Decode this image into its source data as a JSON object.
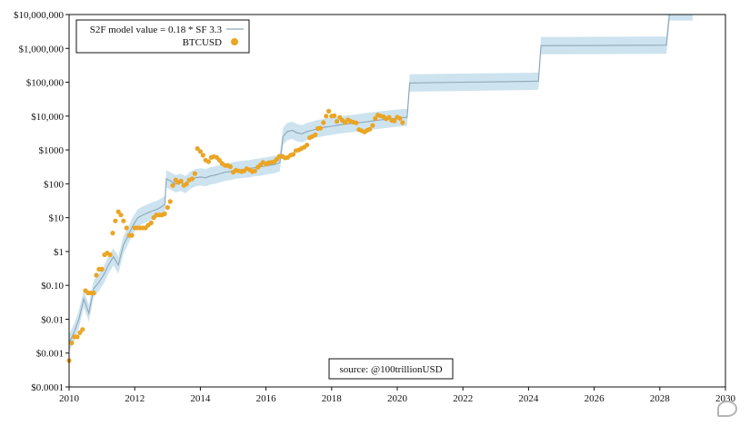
{
  "chart_data": {
    "type": "line",
    "y_scale": "log",
    "xlim": [
      2010,
      2030
    ],
    "ylim": [
      0.0001,
      10000000
    ],
    "x_ticks": [
      2010,
      2012,
      2014,
      2016,
      2018,
      2020,
      2022,
      2024,
      2026,
      2028,
      2030
    ],
    "x_tick_labels": [
      "2010",
      "2012",
      "2014",
      "2016",
      "2018",
      "2020",
      "2022",
      "2024",
      "2026",
      "2028",
      "2030"
    ],
    "y_ticks": [
      0.0001,
      0.001,
      0.01,
      0.1,
      1,
      10,
      100,
      1000,
      10000,
      100000,
      1000000,
      10000000
    ],
    "y_tick_labels": [
      "$0.0001",
      "$0.001",
      "$0.01",
      "$0.10",
      "$1",
      "$10",
      "$100",
      "$1000",
      "$10,000",
      "$100,000",
      "$1,000,000",
      "$10,000,000"
    ],
    "legend_position": "top-left",
    "annotation": "source: @100trillionUSD",
    "series": [
      {
        "name": "S2F model value = 0.18 * SF 3.3",
        "kind": "line",
        "color": "#8fa7b8",
        "band_color": "#bcd9ea",
        "band_factor": 1.8,
        "points": [
          [
            2010.0,
            0.002
          ],
          [
            2010.15,
            0.004
          ],
          [
            2010.3,
            0.01
          ],
          [
            2010.45,
            0.04
          ],
          [
            2010.6,
            0.015
          ],
          [
            2010.75,
            0.08
          ],
          [
            2010.9,
            0.12
          ],
          [
            2011.05,
            0.2
          ],
          [
            2011.2,
            0.4
          ],
          [
            2011.35,
            0.7
          ],
          [
            2011.5,
            0.4
          ],
          [
            2011.65,
            1.5
          ],
          [
            2011.8,
            3
          ],
          [
            2011.95,
            6
          ],
          [
            2012.1,
            10
          ],
          [
            2012.25,
            12
          ],
          [
            2012.4,
            14
          ],
          [
            2012.55,
            16
          ],
          [
            2012.7,
            18
          ],
          [
            2012.85,
            22
          ],
          [
            2012.92,
            25
          ],
          [
            2012.96,
            140
          ],
          [
            2013.1,
            120
          ],
          [
            2013.25,
            100
          ],
          [
            2013.4,
            110
          ],
          [
            2013.55,
            95
          ],
          [
            2013.7,
            130
          ],
          [
            2013.85,
            150
          ],
          [
            2014.0,
            160
          ],
          [
            2014.15,
            150
          ],
          [
            2014.3,
            170
          ],
          [
            2014.45,
            180
          ],
          [
            2014.6,
            200
          ],
          [
            2014.75,
            220
          ],
          [
            2014.9,
            230
          ],
          [
            2015.05,
            250
          ],
          [
            2015.2,
            260
          ],
          [
            2015.35,
            270
          ],
          [
            2015.5,
            280
          ],
          [
            2015.65,
            300
          ],
          [
            2015.8,
            310
          ],
          [
            2015.95,
            330
          ],
          [
            2016.1,
            350
          ],
          [
            2016.25,
            370
          ],
          [
            2016.42,
            420
          ],
          [
            2016.52,
            2500
          ],
          [
            2016.65,
            3500
          ],
          [
            2016.8,
            3800
          ],
          [
            2016.95,
            3200
          ],
          [
            2017.1,
            3000
          ],
          [
            2017.25,
            3500
          ],
          [
            2017.4,
            3800
          ],
          [
            2017.55,
            4200
          ],
          [
            2017.7,
            4500
          ],
          [
            2017.85,
            4800
          ],
          [
            2018.0,
            5000
          ],
          [
            2018.15,
            5300
          ],
          [
            2018.3,
            5600
          ],
          [
            2018.45,
            5800
          ],
          [
            2018.6,
            6000
          ],
          [
            2018.75,
            6300
          ],
          [
            2018.9,
            6500
          ],
          [
            2019.05,
            6800
          ],
          [
            2019.2,
            7100
          ],
          [
            2019.35,
            7400
          ],
          [
            2019.5,
            7700
          ],
          [
            2019.65,
            8000
          ],
          [
            2019.8,
            8300
          ],
          [
            2019.95,
            8600
          ],
          [
            2020.1,
            8900
          ],
          [
            2020.3,
            9200
          ],
          [
            2020.38,
            95000
          ],
          [
            2021.0,
            97000
          ],
          [
            2022.0,
            100000
          ],
          [
            2023.0,
            103000
          ],
          [
            2024.0,
            106000
          ],
          [
            2024.3,
            108000
          ],
          [
            2024.38,
            1200000
          ],
          [
            2025.0,
            1210000
          ],
          [
            2026.0,
            1220000
          ],
          [
            2027.0,
            1230000
          ],
          [
            2028.2,
            1250000
          ],
          [
            2028.3,
            12000000
          ],
          [
            2029.0,
            12000000
          ]
        ]
      },
      {
        "name": "BTCUSD",
        "kind": "scatter",
        "color": "#eaa524",
        "points": [
          [
            2010.0,
            0.0006
          ],
          [
            2010.08,
            0.002
          ],
          [
            2010.16,
            0.003
          ],
          [
            2010.25,
            0.003
          ],
          [
            2010.33,
            0.004
          ],
          [
            2010.41,
            0.005
          ],
          [
            2010.5,
            0.07
          ],
          [
            2010.58,
            0.06
          ],
          [
            2010.66,
            0.06
          ],
          [
            2010.75,
            0.06
          ],
          [
            2010.83,
            0.2
          ],
          [
            2010.91,
            0.3
          ],
          [
            2011.0,
            0.3
          ],
          [
            2011.08,
            0.8
          ],
          [
            2011.16,
            0.9
          ],
          [
            2011.25,
            0.8
          ],
          [
            2011.33,
            3.5
          ],
          [
            2011.41,
            8
          ],
          [
            2011.5,
            15
          ],
          [
            2011.58,
            12
          ],
          [
            2011.66,
            8
          ],
          [
            2011.75,
            5
          ],
          [
            2011.83,
            3
          ],
          [
            2011.91,
            3
          ],
          [
            2012.0,
            5
          ],
          [
            2012.08,
            5
          ],
          [
            2012.16,
            5
          ],
          [
            2012.25,
            5
          ],
          [
            2012.33,
            5
          ],
          [
            2012.41,
            6
          ],
          [
            2012.5,
            7
          ],
          [
            2012.58,
            10
          ],
          [
            2012.66,
            12
          ],
          [
            2012.75,
            12
          ],
          [
            2012.83,
            12
          ],
          [
            2012.91,
            13
          ],
          [
            2013.0,
            20
          ],
          [
            2013.08,
            30
          ],
          [
            2013.16,
            90
          ],
          [
            2013.25,
            130
          ],
          [
            2013.33,
            110
          ],
          [
            2013.41,
            120
          ],
          [
            2013.5,
            90
          ],
          [
            2013.58,
            100
          ],
          [
            2013.66,
            130
          ],
          [
            2013.75,
            140
          ],
          [
            2013.83,
            200
          ],
          [
            2013.91,
            1100
          ],
          [
            2014.0,
            900
          ],
          [
            2014.08,
            700
          ],
          [
            2014.16,
            500
          ],
          [
            2014.25,
            450
          ],
          [
            2014.33,
            600
          ],
          [
            2014.41,
            640
          ],
          [
            2014.5,
            600
          ],
          [
            2014.58,
            500
          ],
          [
            2014.66,
            400
          ],
          [
            2014.75,
            350
          ],
          [
            2014.83,
            350
          ],
          [
            2014.91,
            320
          ],
          [
            2015.0,
            220
          ],
          [
            2015.08,
            250
          ],
          [
            2015.16,
            240
          ],
          [
            2015.25,
            230
          ],
          [
            2015.33,
            240
          ],
          [
            2015.41,
            280
          ],
          [
            2015.5,
            260
          ],
          [
            2015.58,
            230
          ],
          [
            2015.66,
            240
          ],
          [
            2015.75,
            310
          ],
          [
            2015.83,
            360
          ],
          [
            2015.91,
            430
          ],
          [
            2016.0,
            380
          ],
          [
            2016.08,
            420
          ],
          [
            2016.16,
            430
          ],
          [
            2016.25,
            450
          ],
          [
            2016.33,
            530
          ],
          [
            2016.41,
            650
          ],
          [
            2016.5,
            650
          ],
          [
            2016.58,
            580
          ],
          [
            2016.66,
            600
          ],
          [
            2016.75,
            700
          ],
          [
            2016.83,
            740
          ],
          [
            2016.91,
            960
          ],
          [
            2017.0,
            1000
          ],
          [
            2017.08,
            1100
          ],
          [
            2017.16,
            1200
          ],
          [
            2017.25,
            1400
          ],
          [
            2017.33,
            2300
          ],
          [
            2017.41,
            2500
          ],
          [
            2017.5,
            2800
          ],
          [
            2017.58,
            4300
          ],
          [
            2017.66,
            4400
          ],
          [
            2017.75,
            6400
          ],
          [
            2017.83,
            10000
          ],
          [
            2017.91,
            14000
          ],
          [
            2018.0,
            10000
          ],
          [
            2018.08,
            10300
          ],
          [
            2018.16,
            7000
          ],
          [
            2018.25,
            9200
          ],
          [
            2018.33,
            7500
          ],
          [
            2018.41,
            6400
          ],
          [
            2018.5,
            7700
          ],
          [
            2018.58,
            7000
          ],
          [
            2018.66,
            6600
          ],
          [
            2018.75,
            6300
          ],
          [
            2018.83,
            4000
          ],
          [
            2018.91,
            3700
          ],
          [
            2019.0,
            3400
          ],
          [
            2019.08,
            3800
          ],
          [
            2019.16,
            4100
          ],
          [
            2019.25,
            5300
          ],
          [
            2019.33,
            8500
          ],
          [
            2019.41,
            10800
          ],
          [
            2019.5,
            10100
          ],
          [
            2019.58,
            9600
          ],
          [
            2019.66,
            8300
          ],
          [
            2019.75,
            9200
          ],
          [
            2019.83,
            7500
          ],
          [
            2019.91,
            7200
          ],
          [
            2020.0,
            9300
          ],
          [
            2020.08,
            8600
          ],
          [
            2020.16,
            6400
          ]
        ]
      }
    ]
  }
}
